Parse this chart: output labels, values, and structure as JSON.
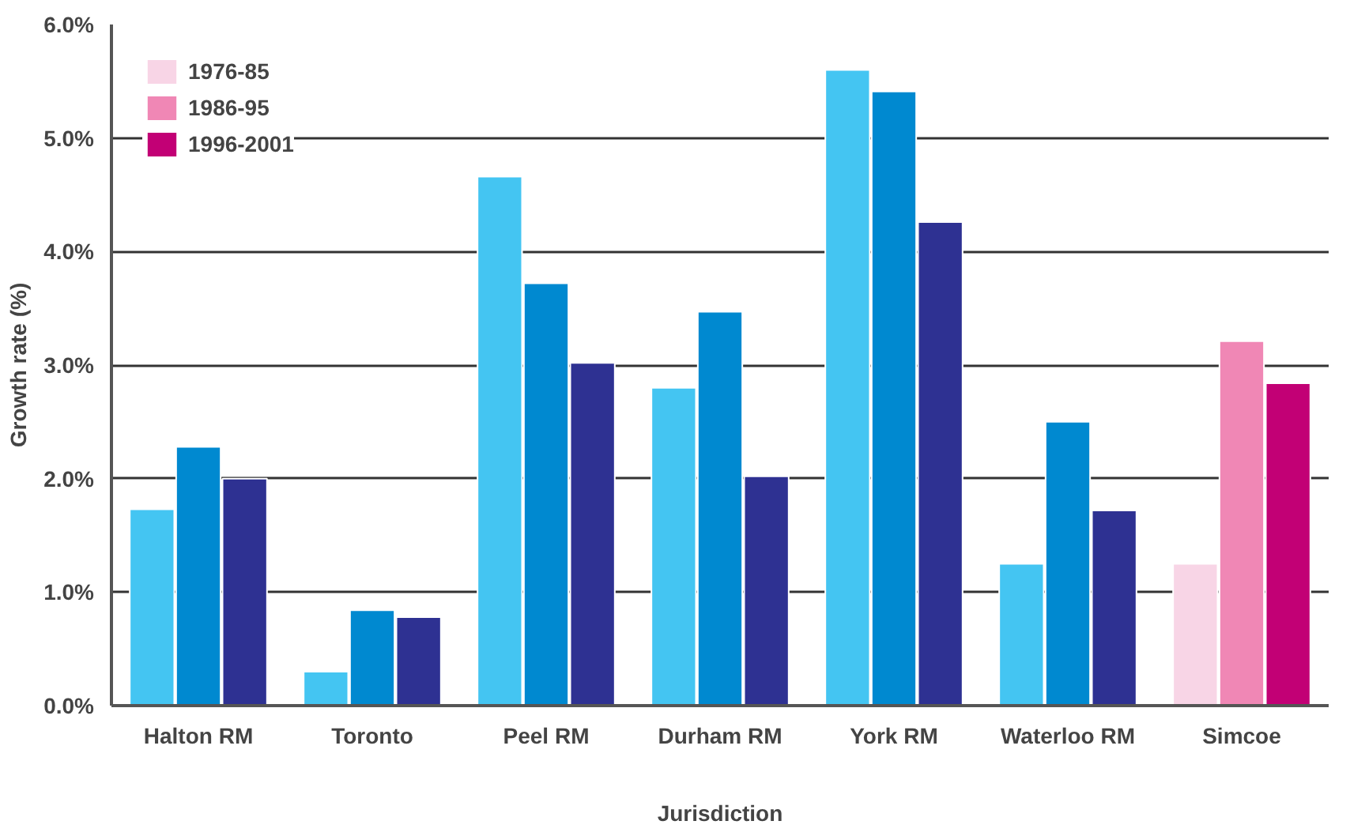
{
  "chart_data": {
    "type": "bar",
    "xlabel": "Jurisdiction",
    "ylabel": "Growth rate (%)",
    "categories": [
      "Halton RM",
      "Toronto",
      "Peel RM",
      "Durham RM",
      "York RM",
      "Waterloo RM",
      "Simcoe"
    ],
    "series": [
      {
        "name": "1976-85",
        "color": "#f8d5e6",
        "colors": [
          "#44c5f2",
          "#44c5f2",
          "#44c5f2",
          "#44c5f2",
          "#44c5f2",
          "#44c5f2",
          "#f8d5e6"
        ],
        "values": [
          1.73,
          0.3,
          4.66,
          2.8,
          5.6,
          1.25,
          1.25
        ]
      },
      {
        "name": "1986-95",
        "color": "#f087b5",
        "colors": [
          "#0089d0",
          "#0089d0",
          "#0089d0",
          "#0089d0",
          "#0089d0",
          "#0089d0",
          "#f087b5"
        ],
        "values": [
          2.28,
          0.84,
          3.72,
          3.47,
          5.41,
          2.5,
          3.21
        ]
      },
      {
        "name": "1996-2001",
        "color": "#c20075",
        "colors": [
          "#2e3192",
          "#2e3192",
          "#2e3192",
          "#2e3192",
          "#2e3192",
          "#2e3192",
          "#c20075"
        ],
        "values": [
          2.0,
          0.78,
          3.02,
          2.02,
          4.26,
          1.72,
          2.84
        ]
      }
    ],
    "ylim": [
      0,
      6
    ],
    "yticks": [
      {
        "value": 0,
        "label": "0.0%"
      },
      {
        "value": 1,
        "label": "1.0%"
      },
      {
        "value": 2,
        "label": "2.0%"
      },
      {
        "value": 3,
        "label": "3.0%"
      },
      {
        "value": 4,
        "label": "4.0%"
      },
      {
        "value": 5,
        "label": "5.0%"
      },
      {
        "value": 6,
        "label": "6.0%"
      }
    ],
    "grid": "y",
    "legend": "top left"
  }
}
